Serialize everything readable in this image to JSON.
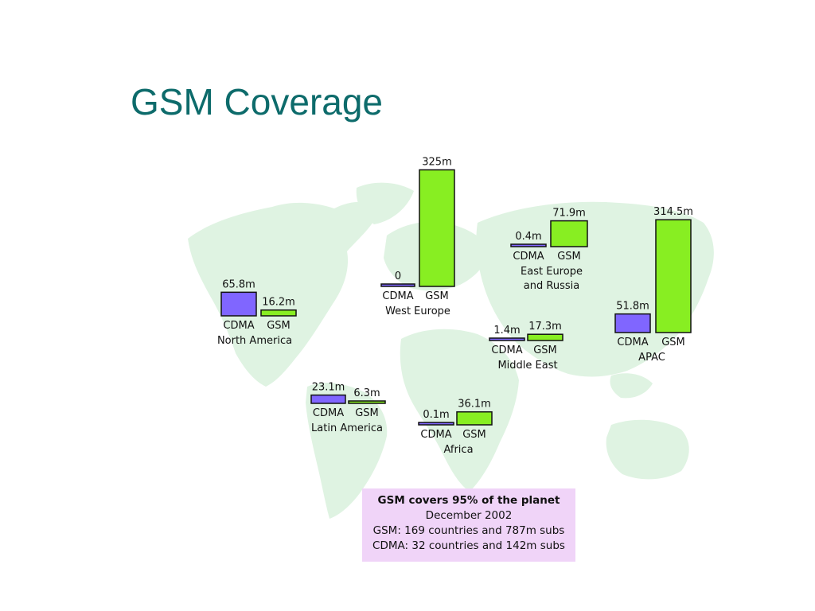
{
  "slide": {
    "title": "GSM Coverage"
  },
  "colors": {
    "title": "#0d6b6b",
    "map_land": "#dff3e2",
    "cdma_bar": "#8066ff",
    "gsm_bar": "#88ee22",
    "info_box": "#f0d4f8"
  },
  "chart_data": {
    "type": "bar",
    "title": "",
    "unit": "m",
    "series_names": [
      "CDMA",
      "GSM"
    ],
    "regions": [
      {
        "name": "North America",
        "cdma": 65.8,
        "gsm": 16.2,
        "cdma_label": "65.8m",
        "gsm_label": "16.2m"
      },
      {
        "name": "Latin America",
        "cdma": 23.1,
        "gsm": 6.3,
        "cdma_label": "23.1m",
        "gsm_label": "6.3m"
      },
      {
        "name": "West Europe",
        "cdma": 0,
        "gsm": 325,
        "cdma_label": "0",
        "gsm_label": "325m"
      },
      {
        "name": "Africa",
        "cdma": 0.1,
        "gsm": 36.1,
        "cdma_label": "0.1m",
        "gsm_label": "36.1m"
      },
      {
        "name": "East Europe and Russia",
        "cdma": 0.4,
        "gsm": 71.9,
        "cdma_label": "0.4m",
        "gsm_label": "71.9m"
      },
      {
        "name": "Middle East",
        "cdma": 1.4,
        "gsm": 17.3,
        "cdma_label": "1.4m",
        "gsm_label": "17.3m"
      },
      {
        "name": "APAC",
        "cdma": 51.8,
        "gsm": 314.5,
        "cdma_label": "51.8m",
        "gsm_label": "314.5m"
      }
    ]
  },
  "info": {
    "headline": "GSM covers 95% of the planet",
    "date": "December 2002",
    "gsm_line": "GSM: 169 countries and 787m subs",
    "cdma_line": "CDMA: 32 countries and 142m subs"
  }
}
